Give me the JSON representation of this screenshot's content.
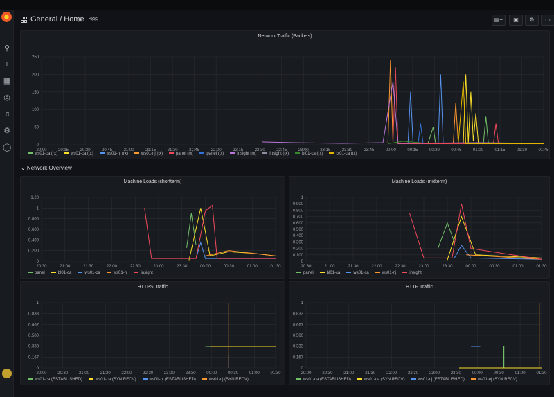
{
  "header": {
    "breadcrumb": "General  / Home",
    "star_icon": "star-icon",
    "share_icon": "share-icon",
    "buttons": [
      "add-panel-icon",
      "save-icon",
      "settings-icon",
      "tv-icon"
    ]
  },
  "sidebar": {
    "icons": [
      "search-icon",
      "plus-icon",
      "dashboards-icon",
      "explore-icon",
      "bell-icon",
      "gear-icon",
      "shield-icon"
    ]
  },
  "row_title": "⌄ Network Overview",
  "colors": {
    "green": "#73bf69",
    "yellow": "#fade2a",
    "blue": "#5794f2",
    "orange": "#ff9830",
    "red": "#f2495c",
    "purple": "#b877d9",
    "grey": "#8ab8ff"
  },
  "panels": {
    "traffic": {
      "title": "Network Traffic (Packets)",
      "chart_data": {
        "type": "line",
        "y_ticks": [
          "0",
          "50",
          "100",
          "150",
          "200",
          "250"
        ],
        "ylim": [
          0,
          250
        ],
        "x_ticks": [
          "20:00",
          "20:15",
          "20:30",
          "20:45",
          "21:00",
          "21:15",
          "21:30",
          "21:45",
          "22:00",
          "22:15",
          "22:30",
          "22:45",
          "23:00",
          "23:15",
          "23:30",
          "23:45",
          "00:00",
          "00:15",
          "00:30",
          "00:45",
          "01:00",
          "01:15",
          "01:30",
          "01:45"
        ],
        "series": [
          {
            "name": "ws01-ca (rx)",
            "color": "#73bf69",
            "values": [
              [
                0.77,
                5
              ],
              [
                0.78,
                50
              ],
              [
                0.785,
                3
              ],
              [
                0.88,
                3
              ],
              [
                0.885,
                80
              ],
              [
                0.89,
                3
              ]
            ]
          },
          {
            "name": "ws01-ca (tx)",
            "color": "#fade2a",
            "values": [
              [
                0.84,
                3
              ],
              [
                0.845,
                200
              ],
              [
                0.85,
                5
              ],
              [
                0.855,
                150
              ],
              [
                0.86,
                10
              ],
              [
                0.865,
                90
              ],
              [
                0.87,
                5
              ]
            ]
          },
          {
            "name": "ws01-nj (rx)",
            "color": "#5794f2",
            "values": [
              [
                0.73,
                5
              ],
              [
                0.735,
                150
              ],
              [
                0.74,
                5
              ],
              [
                0.79,
                5
              ],
              [
                0.795,
                200
              ],
              [
                0.8,
                4
              ]
            ]
          },
          {
            "name": "ws01-nj (tx)",
            "color": "#ff9830",
            "values": [
              [
                0.69,
                5
              ],
              [
                0.695,
                240
              ],
              [
                0.7,
                5
              ],
              [
                0.82,
                3
              ],
              [
                0.825,
                120
              ],
              [
                0.83,
                3
              ]
            ]
          },
          {
            "name": "panel (rx)",
            "color": "#f2495c",
            "values": [
              [
                0.7,
                3
              ],
              [
                0.705,
                220
              ],
              [
                0.71,
                3
              ],
              [
                0.9,
                3
              ],
              [
                0.905,
                60
              ],
              [
                0.91,
                3
              ]
            ]
          },
          {
            "name": "panel (tx)",
            "color": "#3274d9",
            "values": [
              [
                0.75,
                3
              ],
              [
                0.755,
                60
              ],
              [
                0.76,
                3
              ]
            ]
          },
          {
            "name": "insight (rx)",
            "color": "#b877d9",
            "values": [
              [
                0.44,
                8
              ],
              [
                0.5,
                6
              ],
              [
                0.6,
                4
              ],
              [
                0.68,
                6
              ],
              [
                0.7,
                180
              ],
              [
                0.71,
                4
              ],
              [
                0.87,
                6
              ],
              [
                1.0,
                4
              ]
            ]
          },
          {
            "name": "insight (tx)",
            "color": "#8f8f9f",
            "values": [
              [
                0.44,
                5
              ],
              [
                1.0,
                5
              ]
            ]
          },
          {
            "name": "bl01-ca (rx)",
            "color": "#37872d",
            "values": [
              [
                0.69,
                3
              ],
              [
                0.72,
                10
              ],
              [
                0.76,
                5
              ],
              [
                1.0,
                4
              ]
            ]
          },
          {
            "name": "bl01-ca (tx)",
            "color": "#e0b400",
            "values": [
              [
                0.83,
                3
              ],
              [
                0.84,
                180
              ],
              [
                0.845,
                3
              ],
              [
                1.0,
                3
              ]
            ]
          }
        ]
      }
    },
    "short": {
      "title": "Machine Loads (shortterm)",
      "chart_data": {
        "type": "line",
        "y_ticks": [
          "0",
          "0.200",
          "0.400",
          "0.600",
          "0.800",
          "1",
          "1.20"
        ],
        "ylim": [
          0,
          1.2
        ],
        "x_ticks": [
          "20:30",
          "21:00",
          "21:30",
          "22:00",
          "22:30",
          "23:00",
          "23:30",
          "00:00",
          "00:30",
          "01:00",
          "01:30"
        ],
        "series": [
          {
            "name": "panel",
            "color": "#73bf69",
            "values": [
              [
                0.62,
                0.25
              ],
              [
                0.64,
                0.9
              ],
              [
                0.66,
                0.3
              ]
            ]
          },
          {
            "name": "bl01-ca",
            "color": "#fade2a",
            "values": [
              [
                0.63,
                0.02
              ],
              [
                0.68,
                1.0
              ],
              [
                0.72,
                0.1
              ],
              [
                0.8,
                0.18
              ],
              [
                0.9,
                0.15
              ],
              [
                1.0,
                0.1
              ]
            ]
          },
          {
            "name": "ws01-ca",
            "color": "#5794f2",
            "values": [
              [
                0.66,
                0.05
              ],
              [
                0.68,
                0.35
              ],
              [
                0.7,
                0.05
              ],
              [
                1.0,
                0.05
              ]
            ]
          },
          {
            "name": "ws01-nj",
            "color": "#ff9830",
            "values": [
              [
                0.7,
                0.1
              ],
              [
                0.8,
                0.2
              ],
              [
                0.9,
                0.15
              ],
              [
                1.0,
                0.1
              ]
            ]
          },
          {
            "name": "insight",
            "color": "#f2495c",
            "values": [
              [
                0.44,
                1.0
              ],
              [
                0.47,
                0.05
              ],
              [
                0.66,
                0.05
              ],
              [
                0.7,
                0.95
              ],
              [
                0.73,
                1.05
              ],
              [
                0.75,
                0.05
              ],
              [
                1.0,
                0.05
              ]
            ]
          }
        ]
      }
    },
    "mid": {
      "title": "Machine Loads (midterm)",
      "chart_data": {
        "type": "line",
        "y_ticks": [
          "0",
          "0.100",
          "0.200",
          "0.300",
          "0.400",
          "0.500",
          "0.600",
          "0.700",
          "0.800",
          "0.900",
          "1"
        ],
        "ylim": [
          0,
          1
        ],
        "x_ticks": [
          "20:30",
          "21:00",
          "21:30",
          "22:00",
          "22:30",
          "23:00",
          "23:30",
          "00:00",
          "00:30",
          "01:00",
          "01:30"
        ],
        "series": [
          {
            "name": "panel",
            "color": "#73bf69",
            "values": [
              [
                0.56,
                0.2
              ],
              [
                0.6,
                0.6
              ],
              [
                0.63,
                0.3
              ]
            ]
          },
          {
            "name": "bl01-ca",
            "color": "#fade2a",
            "values": [
              [
                0.6,
                0.02
              ],
              [
                0.66,
                0.7
              ],
              [
                0.72,
                0.1
              ],
              [
                1.0,
                0.05
              ]
            ]
          },
          {
            "name": "ws01-ca",
            "color": "#5794f2",
            "values": [
              [
                0.63,
                0.05
              ],
              [
                0.66,
                0.25
              ],
              [
                0.7,
                0.05
              ],
              [
                1.0,
                0.03
              ]
            ]
          },
          {
            "name": "ws01-nj",
            "color": "#ff9830",
            "values": [
              [
                0.68,
                0.1
              ],
              [
                1.0,
                0.03
              ]
            ]
          },
          {
            "name": "insight",
            "color": "#f2495c",
            "values": [
              [
                0.44,
                0.75
              ],
              [
                0.5,
                0.05
              ],
              [
                0.62,
                0.05
              ],
              [
                0.66,
                0.9
              ],
              [
                0.7,
                0.2
              ],
              [
                1.0,
                0.03
              ]
            ]
          }
        ]
      }
    },
    "https": {
      "title": "HTTPS Traffic",
      "chart_data": {
        "type": "line",
        "y_ticks": [
          "0",
          "0.167",
          "0.333",
          "0.500",
          "0.667",
          "0.833",
          "1"
        ],
        "ylim": [
          0,
          1
        ],
        "x_ticks": [
          "20:00",
          "20:30",
          "21:00",
          "21:30",
          "22:00",
          "22:30",
          "23:00",
          "23:30",
          "00:00",
          "00:30",
          "01:00",
          "01:30"
        ],
        "series": [
          {
            "name": "ws01-ca (ESTABLISHED)",
            "color": "#73bf69",
            "values": [
              [
                0.7,
                0.33
              ],
              [
                1.0,
                0.33
              ]
            ]
          },
          {
            "name": "ws01-ca (SYN RECV)",
            "color": "#fade2a",
            "values": [
              [
                0.72,
                0.33
              ],
              [
                1.0,
                0.33
              ]
            ]
          },
          {
            "name": "ws01-nj (ESTABLISHED)",
            "color": "#5794f2",
            "values": [
              [
                0.8,
                0.2
              ]
            ]
          },
          {
            "name": "ws01-nj (SYN RECV)",
            "color": "#ff9830",
            "values": [
              [
                0.8,
                1.0
              ]
            ]
          }
        ]
      }
    },
    "http": {
      "title": "HTTP Traffic",
      "chart_data": {
        "type": "line",
        "y_ticks": [
          "0",
          "0.167",
          "0.333",
          "0.500",
          "0.667",
          "0.833",
          "1"
        ],
        "ylim": [
          0,
          1
        ],
        "x_ticks": [
          "20:00",
          "20:30",
          "21:00",
          "21:30",
          "22:00",
          "22:30",
          "23:00",
          "23:30",
          "00:00",
          "00:30",
          "01:00",
          "01:30"
        ],
        "series": [
          {
            "name": "ws01-ca (ESTABLISHED)",
            "color": "#73bf69",
            "values": [
              [
                0.84,
                0.33
              ]
            ]
          },
          {
            "name": "ws01-ca (SYN RECV)",
            "color": "#fade2a",
            "values": [
              [
                0.65,
                0.0
              ],
              [
                1.0,
                0.0
              ]
            ]
          },
          {
            "name": "ws01-nj (ESTABLISHED)",
            "color": "#5794f2",
            "values": [
              [
                0.7,
                0.33
              ],
              [
                0.74,
                0.33
              ]
            ]
          },
          {
            "name": "ws01-nj (SYN RECV)",
            "color": "#ff9830",
            "values": [
              [
                0.99,
                1.0
              ]
            ]
          }
        ]
      }
    }
  }
}
